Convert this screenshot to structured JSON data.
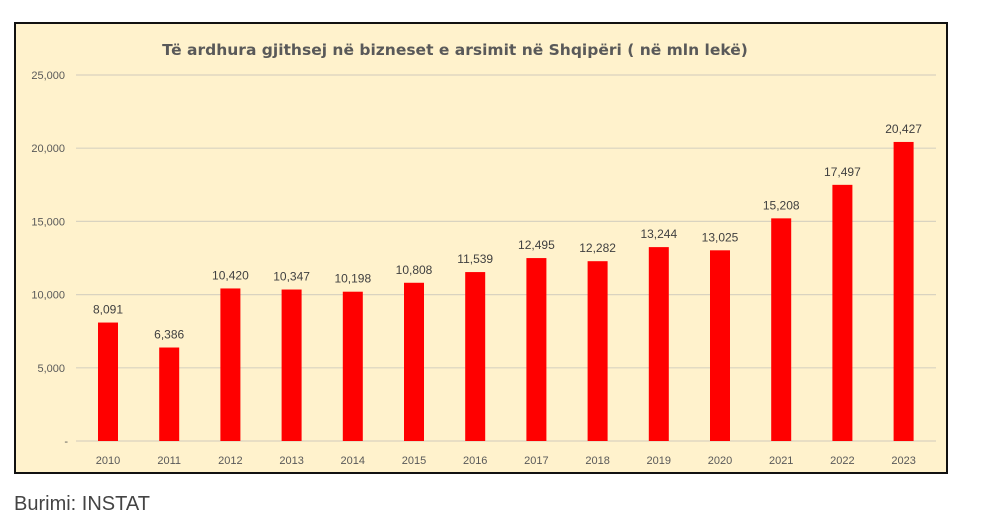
{
  "chart_data": {
    "type": "bar",
    "title": "Të ardhura gjithsej në bizneset e arsimit në Shqipëri ( në mln lekë)",
    "categories": [
      "2010",
      "2011",
      "2012",
      "2013",
      "2014",
      "2015",
      "2016",
      "2017",
      "2018",
      "2019",
      "2020",
      "2021",
      "2022",
      "2023"
    ],
    "values": [
      8091,
      6386,
      10420,
      10347,
      10198,
      10808,
      11539,
      12495,
      12282,
      13244,
      13025,
      15208,
      17497,
      20427
    ],
    "data_labels": [
      "8,091",
      "6,386",
      "10,420",
      "10,347",
      "10,198",
      "10,808",
      "11,539",
      "12,495",
      "12,282",
      "13,244",
      "13,025",
      "15,208",
      "17,497",
      "20,427"
    ],
    "ylim": [
      0,
      25000
    ],
    "y_ticks": [
      0,
      5000,
      10000,
      15000,
      20000,
      25000
    ],
    "y_tick_labels": [
      "-",
      "5,000",
      "10,000",
      "15,000",
      "20,000",
      "25,000"
    ],
    "xlabel": "",
    "ylabel": "",
    "grid": true,
    "legend": "none",
    "bar_color": "#ff0000",
    "background_color": "#fff2cc"
  },
  "source": "Burimi: INSTAT"
}
